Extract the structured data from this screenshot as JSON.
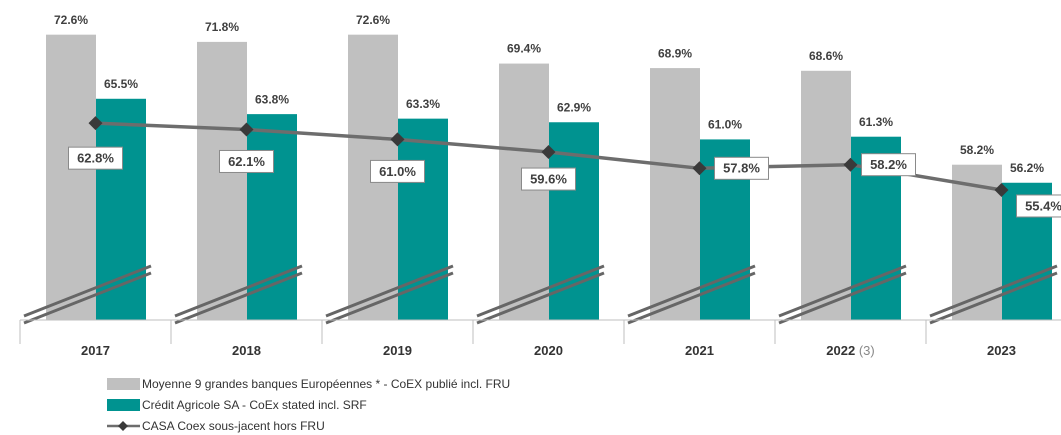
{
  "chart_data": {
    "type": "bar",
    "categories": [
      "2017",
      "2018",
      "2019",
      "2020",
      "2021",
      "2022",
      "2023"
    ],
    "category_notes": [
      null,
      null,
      null,
      null,
      null,
      "(3)",
      null
    ],
    "ylim": [
      41,
      75
    ],
    "series": [
      {
        "name": "Moyenne 9 grandes banques Européennes * - CoEX publié incl. FRU",
        "type": "bar",
        "color": "#c0c0c0",
        "values": [
          72.6,
          71.8,
          72.6,
          69.4,
          68.9,
          68.6,
          58.2
        ],
        "value_labels": [
          "72.6%",
          "71.8%",
          "72.6%",
          "69.4%",
          "68.9%",
          "68.6%",
          "58.2%"
        ]
      },
      {
        "name": "Crédit Agricole SA - CoEx stated incl. SRF",
        "type": "bar",
        "color": "#009390",
        "values": [
          65.5,
          63.8,
          63.3,
          62.9,
          61.0,
          61.3,
          56.2
        ],
        "value_labels": [
          "65.5%",
          "63.8%",
          "63.3%",
          "62.9%",
          "61.0%",
          "61.3%",
          "56.2%"
        ]
      },
      {
        "name": "CASA Coex sous-jacent hors FRU",
        "type": "line",
        "color": "#6d6d6d",
        "values": [
          62.8,
          62.1,
          61.0,
          59.6,
          57.8,
          58.2,
          55.4
        ],
        "value_labels": [
          "62.8%",
          "62.1%",
          "61.0%",
          "59.6%",
          "57.8%",
          "58.2%",
          "55.4%"
        ]
      }
    ]
  }
}
